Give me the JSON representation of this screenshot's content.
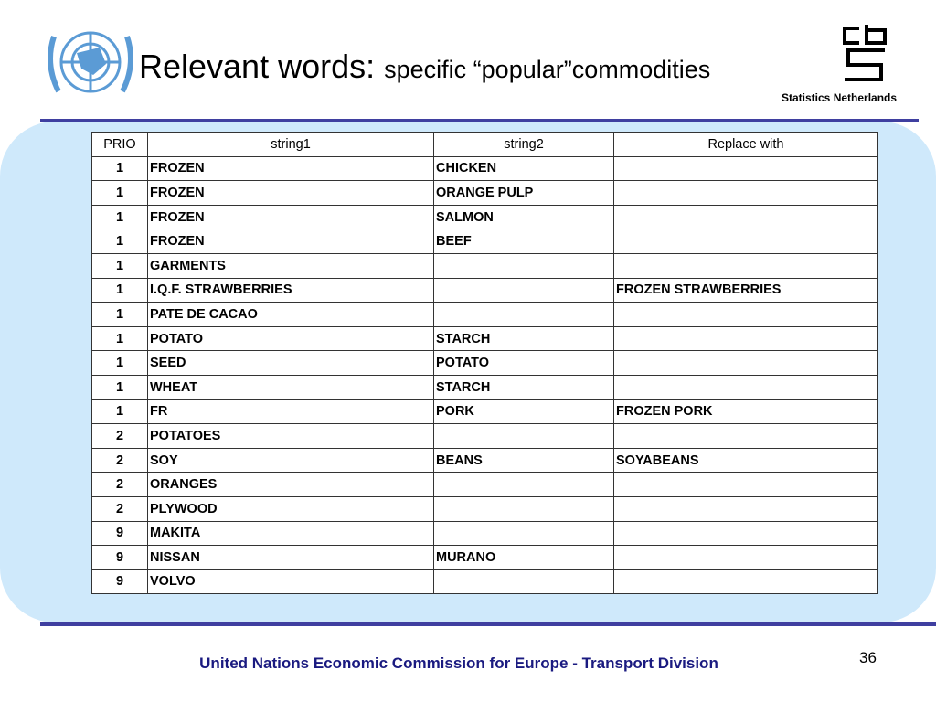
{
  "header": {
    "title": "Relevant words:",
    "subtitle": "specific “popular”commodities",
    "logo_text": "Statistics Netherlands"
  },
  "table": {
    "columns": [
      "PRIO",
      "string1",
      "string2",
      "Replace with"
    ],
    "rows": [
      [
        1,
        "FROZEN",
        "CHICKEN",
        null
      ],
      [
        1,
        "FROZEN",
        "ORANGE PULP",
        null
      ],
      [
        1,
        "FROZEN",
        "SALMON",
        null
      ],
      [
        1,
        "FROZEN",
        "BEEF",
        null
      ],
      [
        1,
        "GARMENTS",
        null,
        null
      ],
      [
        1,
        "I.Q.F. STRAWBERRIES",
        null,
        "FROZEN STRAWBERRIES"
      ],
      [
        1,
        "PATE DE CACAO",
        null,
        null
      ],
      [
        1,
        "POTATO",
        "STARCH",
        null
      ],
      [
        1,
        "SEED",
        "POTATO",
        null
      ],
      [
        1,
        "WHEAT",
        "STARCH",
        null
      ],
      [
        1,
        "FR",
        "PORK",
        "FROZEN PORK"
      ],
      [
        2,
        "POTATOES",
        null,
        null
      ],
      [
        2,
        "SOY",
        "BEANS",
        "SOYABEANS"
      ],
      [
        2,
        "ORANGES",
        null,
        null
      ],
      [
        2,
        "PLYWOOD",
        null,
        null
      ],
      [
        9,
        "MAKITA",
        null,
        null
      ],
      [
        9,
        "NISSAN",
        "MURANO",
        null
      ],
      [
        9,
        "VOLVO",
        null,
        null
      ]
    ]
  },
  "footer": {
    "text": "United Nations Economic Commission for Europe - Transport Division",
    "page_number": 36
  }
}
